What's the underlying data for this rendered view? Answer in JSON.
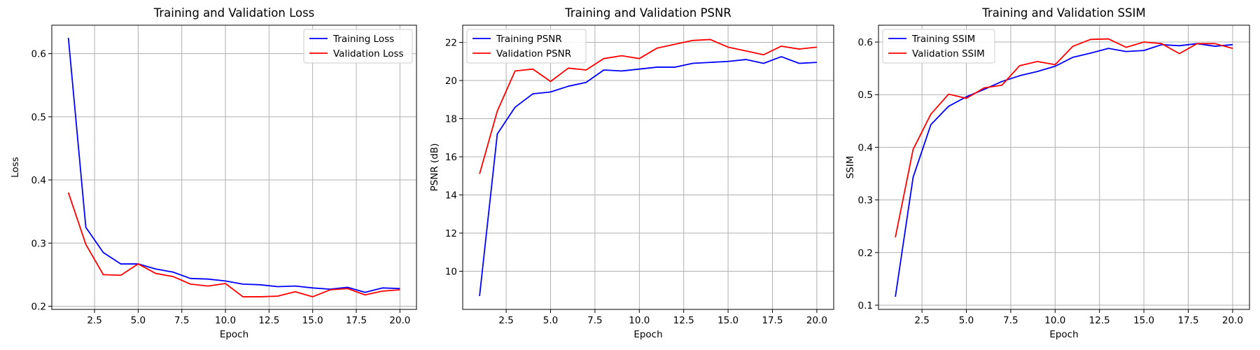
{
  "chart_data": [
    {
      "type": "line",
      "title": "Training and Validation Loss",
      "xlabel": "Epoch",
      "ylabel": "Loss",
      "xlim": [
        0.05,
        20.95
      ],
      "ylim": [
        0.195,
        0.645
      ],
      "xticks": [
        2.5,
        5.0,
        7.5,
        10.0,
        12.5,
        15.0,
        17.5,
        20.0
      ],
      "xtick_labels": [
        "2.5",
        "5.0",
        "7.5",
        "10.0",
        "12.5",
        "15.0",
        "17.5",
        "20.0"
      ],
      "yticks": [
        0.2,
        0.3,
        0.4,
        0.5,
        0.6
      ],
      "ytick_labels": [
        "0.2",
        "0.3",
        "0.4",
        "0.5",
        "0.6"
      ],
      "grid": true,
      "legend_position": "top-right",
      "x": [
        1,
        2,
        3,
        4,
        5,
        6,
        7,
        8,
        9,
        10,
        11,
        12,
        13,
        14,
        15,
        16,
        17,
        18,
        19,
        20
      ],
      "series": [
        {
          "name": "Training Loss",
          "color": "#0000ff",
          "values": [
            0.625,
            0.325,
            0.285,
            0.267,
            0.267,
            0.259,
            0.254,
            0.244,
            0.243,
            0.24,
            0.235,
            0.234,
            0.231,
            0.232,
            0.229,
            0.227,
            0.23,
            0.222,
            0.229,
            0.228
          ]
        },
        {
          "name": "Validation Loss",
          "color": "#ff0000",
          "values": [
            0.38,
            0.298,
            0.25,
            0.249,
            0.267,
            0.252,
            0.247,
            0.235,
            0.232,
            0.236,
            0.215,
            0.215,
            0.216,
            0.223,
            0.215,
            0.226,
            0.228,
            0.218,
            0.224,
            0.226
          ]
        }
      ]
    },
    {
      "type": "line",
      "title": "Training and Validation PSNR",
      "xlabel": "Epoch",
      "ylabel": "PSNR (dB)",
      "xlim": [
        0.05,
        20.95
      ],
      "ylim": [
        8.0,
        22.9
      ],
      "xticks": [
        2.5,
        5.0,
        7.5,
        10.0,
        12.5,
        15.0,
        17.5,
        20.0
      ],
      "xtick_labels": [
        "2.5",
        "5.0",
        "7.5",
        "10.0",
        "12.5",
        "15.0",
        "17.5",
        "20.0"
      ],
      "yticks": [
        10,
        12,
        14,
        16,
        18,
        20,
        22
      ],
      "ytick_labels": [
        "10",
        "12",
        "14",
        "16",
        "18",
        "20",
        "22"
      ],
      "grid": true,
      "legend_position": "top-left",
      "x": [
        1,
        2,
        3,
        4,
        5,
        6,
        7,
        8,
        9,
        10,
        11,
        12,
        13,
        14,
        15,
        16,
        17,
        18,
        19,
        20
      ],
      "series": [
        {
          "name": "Training PSNR",
          "color": "#0000ff",
          "values": [
            8.7,
            17.2,
            18.6,
            19.3,
            19.4,
            19.7,
            19.9,
            20.55,
            20.5,
            20.6,
            20.7,
            20.7,
            20.9,
            20.95,
            21.0,
            21.1,
            20.9,
            21.25,
            20.9,
            20.95
          ]
        },
        {
          "name": "Validation PSNR",
          "color": "#ff0000",
          "values": [
            15.1,
            18.4,
            20.5,
            20.6,
            19.95,
            20.65,
            20.55,
            21.15,
            21.3,
            21.15,
            21.7,
            21.9,
            22.1,
            22.15,
            21.75,
            21.55,
            21.35,
            21.8,
            21.65,
            21.75
          ]
        }
      ]
    },
    {
      "type": "line",
      "title": "Training and Validation SSIM",
      "xlabel": "Epoch",
      "ylabel": "SSIM",
      "xlim": [
        0.05,
        20.95
      ],
      "ylim": [
        0.092,
        0.632
      ],
      "xticks": [
        2.5,
        5.0,
        7.5,
        10.0,
        12.5,
        15.0,
        17.5,
        20.0
      ],
      "xtick_labels": [
        "2.5",
        "5.0",
        "7.5",
        "10.0",
        "12.5",
        "15.0",
        "17.5",
        "20.0"
      ],
      "yticks": [
        0.1,
        0.2,
        0.3,
        0.4,
        0.5,
        0.6
      ],
      "ytick_labels": [
        "0.1",
        "0.2",
        "0.3",
        "0.4",
        "0.5",
        "0.6"
      ],
      "grid": true,
      "legend_position": "top-left",
      "x": [
        1,
        2,
        3,
        4,
        5,
        6,
        7,
        8,
        9,
        10,
        11,
        12,
        13,
        14,
        15,
        16,
        17,
        18,
        19,
        20
      ],
      "series": [
        {
          "name": "Training SSIM",
          "color": "#0000ff",
          "values": [
            0.116,
            0.343,
            0.443,
            0.478,
            0.496,
            0.51,
            0.525,
            0.536,
            0.544,
            0.554,
            0.571,
            0.579,
            0.588,
            0.582,
            0.584,
            0.595,
            0.593,
            0.597,
            0.592,
            0.595
          ]
        },
        {
          "name": "Validation SSIM",
          "color": "#ff0000",
          "values": [
            0.229,
            0.396,
            0.463,
            0.501,
            0.493,
            0.513,
            0.518,
            0.555,
            0.563,
            0.557,
            0.592,
            0.605,
            0.606,
            0.59,
            0.6,
            0.597,
            0.578,
            0.597,
            0.597,
            0.588
          ]
        }
      ]
    }
  ]
}
